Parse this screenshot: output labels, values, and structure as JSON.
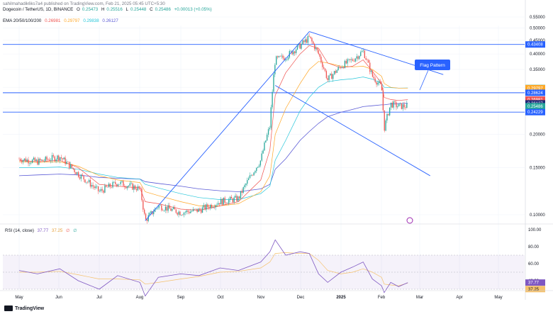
{
  "header": {
    "published": "sahilmahadik6ks7a4 published on TradingView.com, Feb 21, 2025 05:45 UTC+5:30",
    "symbol": "Dogecoin / TetherUS, 1D, BINANCE",
    "o_label": "O",
    "o": "0.25473",
    "h_label": "H",
    "h": "0.25516",
    "l_label": "L",
    "l": "0.25448",
    "c_label": "C",
    "c": "0.25486",
    "change": "+0.00013 (+0.05%)",
    "ema_label": "EMA 20/50/100/200",
    "ema_values": [
      "0.26981",
      "0.29797",
      "0.29838",
      "0.26127"
    ]
  },
  "colors": {
    "up": "#26a69a",
    "down": "#ef5350",
    "ema20": "#ef5350",
    "ema50": "#ffa726",
    "ema100": "#26c6da",
    "ema200": "#5b5bd6",
    "lines": "#2962ff",
    "rsi": "#7e57c2",
    "rsi_ma": "#f5c16c"
  },
  "annotation": {
    "label": "Flag Pattern"
  },
  "rsi": {
    "label": "RSI (14, close)",
    "v1": "37.77",
    "v2": "37.25",
    "extra": [
      "∅",
      "∅"
    ]
  },
  "footer": {
    "brand": "TradingView"
  },
  "chart_data": {
    "type": "line",
    "title": "Dogecoin / TetherUS, 1D, BINANCE",
    "x_ticks": [
      "May",
      "Jun",
      "Jul",
      "Aug",
      "Sep",
      "Oct",
      "Nov",
      "Dec",
      "2025",
      "Feb",
      "Mar",
      "Apr",
      "May"
    ],
    "y_ticks": [
      "0.55000",
      "0.50000",
      "0.45000",
      "0.40000",
      "0.35000",
      "0.30000",
      "0.25000",
      "0.20000",
      "0.15000",
      "0.10000"
    ],
    "rsi_ticks": [
      "100.00",
      "80.00",
      "60.00",
      "40.00"
    ],
    "price_labels": [
      {
        "text": "0.43408",
        "bg": "#2962ff",
        "fg": "#ffffff",
        "price": 0.43408
      },
      {
        "text": "0.29838",
        "bg": "#26c6da",
        "fg": "#131722",
        "price": 0.29838
      },
      {
        "text": "0.29797",
        "bg": "#ffa726",
        "fg": "#ffffff",
        "price": 0.29797
      },
      {
        "text": "0.28624",
        "bg": "#2962ff",
        "fg": "#ffffff",
        "price": 0.28624
      },
      {
        "text": "0.26981",
        "bg": "#ef5350",
        "fg": "#ffffff",
        "price": 0.26981
      },
      {
        "text": "0.26127",
        "bg": "#1e2a78",
        "fg": "#ffffff",
        "price": 0.26127
      },
      {
        "text": "0.25486",
        "bg": "#26a69a",
        "fg": "#ffffff",
        "price": 0.25486
      },
      {
        "text": "23:44:58",
        "bg": "#26a69a",
        "fg": "#ffffff",
        "price": 0.244
      },
      {
        "text": "0.24229",
        "bg": "#2962ff",
        "fg": "#ffffff",
        "price": 0.24229
      }
    ],
    "series": [
      {
        "name": "Dogecoin / TetherUS",
        "dates": [
          "May 1",
          "May 15",
          "Jun 1",
          "Jun 15",
          "Jul 1",
          "Jul 15",
          "Aug 1",
          "Aug 5",
          "Aug 15",
          "Sep 1",
          "Sep 15",
          "Oct 1",
          "Oct 15",
          "Nov 1",
          "Nov 8",
          "Nov 12",
          "Nov 20",
          "Dec 1",
          "Dec 8",
          "Dec 15",
          "Dec 22",
          "Jan 1",
          "Jan 10",
          "Jan 18",
          "Jan 25",
          "Feb 1",
          "Feb 3",
          "Feb 8",
          "Feb 14",
          "Feb 21"
        ],
        "close": [
          0.162,
          0.158,
          0.165,
          0.142,
          0.122,
          0.132,
          0.125,
          0.095,
          0.108,
          0.102,
          0.104,
          0.112,
          0.115,
          0.16,
          0.215,
          0.38,
          0.39,
          0.43,
          0.46,
          0.4,
          0.32,
          0.36,
          0.38,
          0.41,
          0.33,
          0.3,
          0.21,
          0.26,
          0.255,
          0.25486
        ]
      },
      {
        "name": "EMA 20",
        "values": [
          0.16,
          0.158,
          0.16,
          0.15,
          0.13,
          0.128,
          0.126,
          0.112,
          0.11,
          0.105,
          0.104,
          0.108,
          0.112,
          0.135,
          0.175,
          0.28,
          0.34,
          0.4,
          0.43,
          0.42,
          0.37,
          0.355,
          0.36,
          0.38,
          0.345,
          0.31,
          0.275,
          0.27,
          0.268,
          0.26981
        ]
      },
      {
        "name": "EMA 50",
        "values": [
          0.158,
          0.157,
          0.158,
          0.152,
          0.14,
          0.135,
          0.132,
          0.122,
          0.118,
          0.112,
          0.108,
          0.108,
          0.11,
          0.122,
          0.14,
          0.2,
          0.25,
          0.31,
          0.35,
          0.375,
          0.37,
          0.36,
          0.358,
          0.36,
          0.35,
          0.33,
          0.31,
          0.3,
          0.298,
          0.29797
        ]
      },
      {
        "name": "EMA 100",
        "values": [
          0.15,
          0.15,
          0.151,
          0.148,
          0.142,
          0.138,
          0.136,
          0.13,
          0.126,
          0.12,
          0.116,
          0.114,
          0.114,
          0.12,
          0.128,
          0.16,
          0.19,
          0.245,
          0.275,
          0.3,
          0.315,
          0.32,
          0.323,
          0.328,
          0.322,
          0.31,
          0.3,
          0.299,
          0.298,
          0.29838
        ]
      },
      {
        "name": "EMA 200",
        "values": [
          0.14,
          0.141,
          0.142,
          0.141,
          0.138,
          0.137,
          0.136,
          0.133,
          0.131,
          0.128,
          0.125,
          0.123,
          0.122,
          0.125,
          0.13,
          0.148,
          0.162,
          0.19,
          0.205,
          0.22,
          0.233,
          0.242,
          0.248,
          0.254,
          0.256,
          0.258,
          0.258,
          0.26,
          0.261,
          0.26127
        ]
      },
      {
        "name": "RSI (14, close)",
        "values": [
          52,
          48,
          54,
          40,
          30,
          46,
          38,
          22,
          44,
          48,
          46,
          55,
          52,
          62,
          74,
          88,
          70,
          74,
          72,
          48,
          38,
          50,
          56,
          62,
          42,
          34,
          26,
          38,
          33,
          37.77
        ]
      },
      {
        "name": "RSI MA",
        "values": [
          50,
          50,
          51,
          47,
          42,
          42,
          41,
          36,
          38,
          42,
          45,
          50,
          51,
          55,
          62,
          72,
          73,
          72,
          72,
          64,
          52,
          48,
          50,
          54,
          50,
          44,
          36,
          35,
          34,
          37.25
        ]
      }
    ],
    "horizontal_lines": [
      0.43408,
      0.28624,
      0.24229
    ],
    "trend_lines": [
      {
        "from": [
          "Aug 5",
          0.095
        ],
        "to": [
          "Dec 8",
          0.485
        ]
      },
      {
        "from": [
          "Dec 8",
          0.485
        ],
        "to": [
          "Mar 20",
          0.335
        ]
      },
      {
        "from": [
          "Nov 12",
          0.305
        ],
        "to": [
          "Mar 10",
          0.14
        ]
      }
    ]
  }
}
